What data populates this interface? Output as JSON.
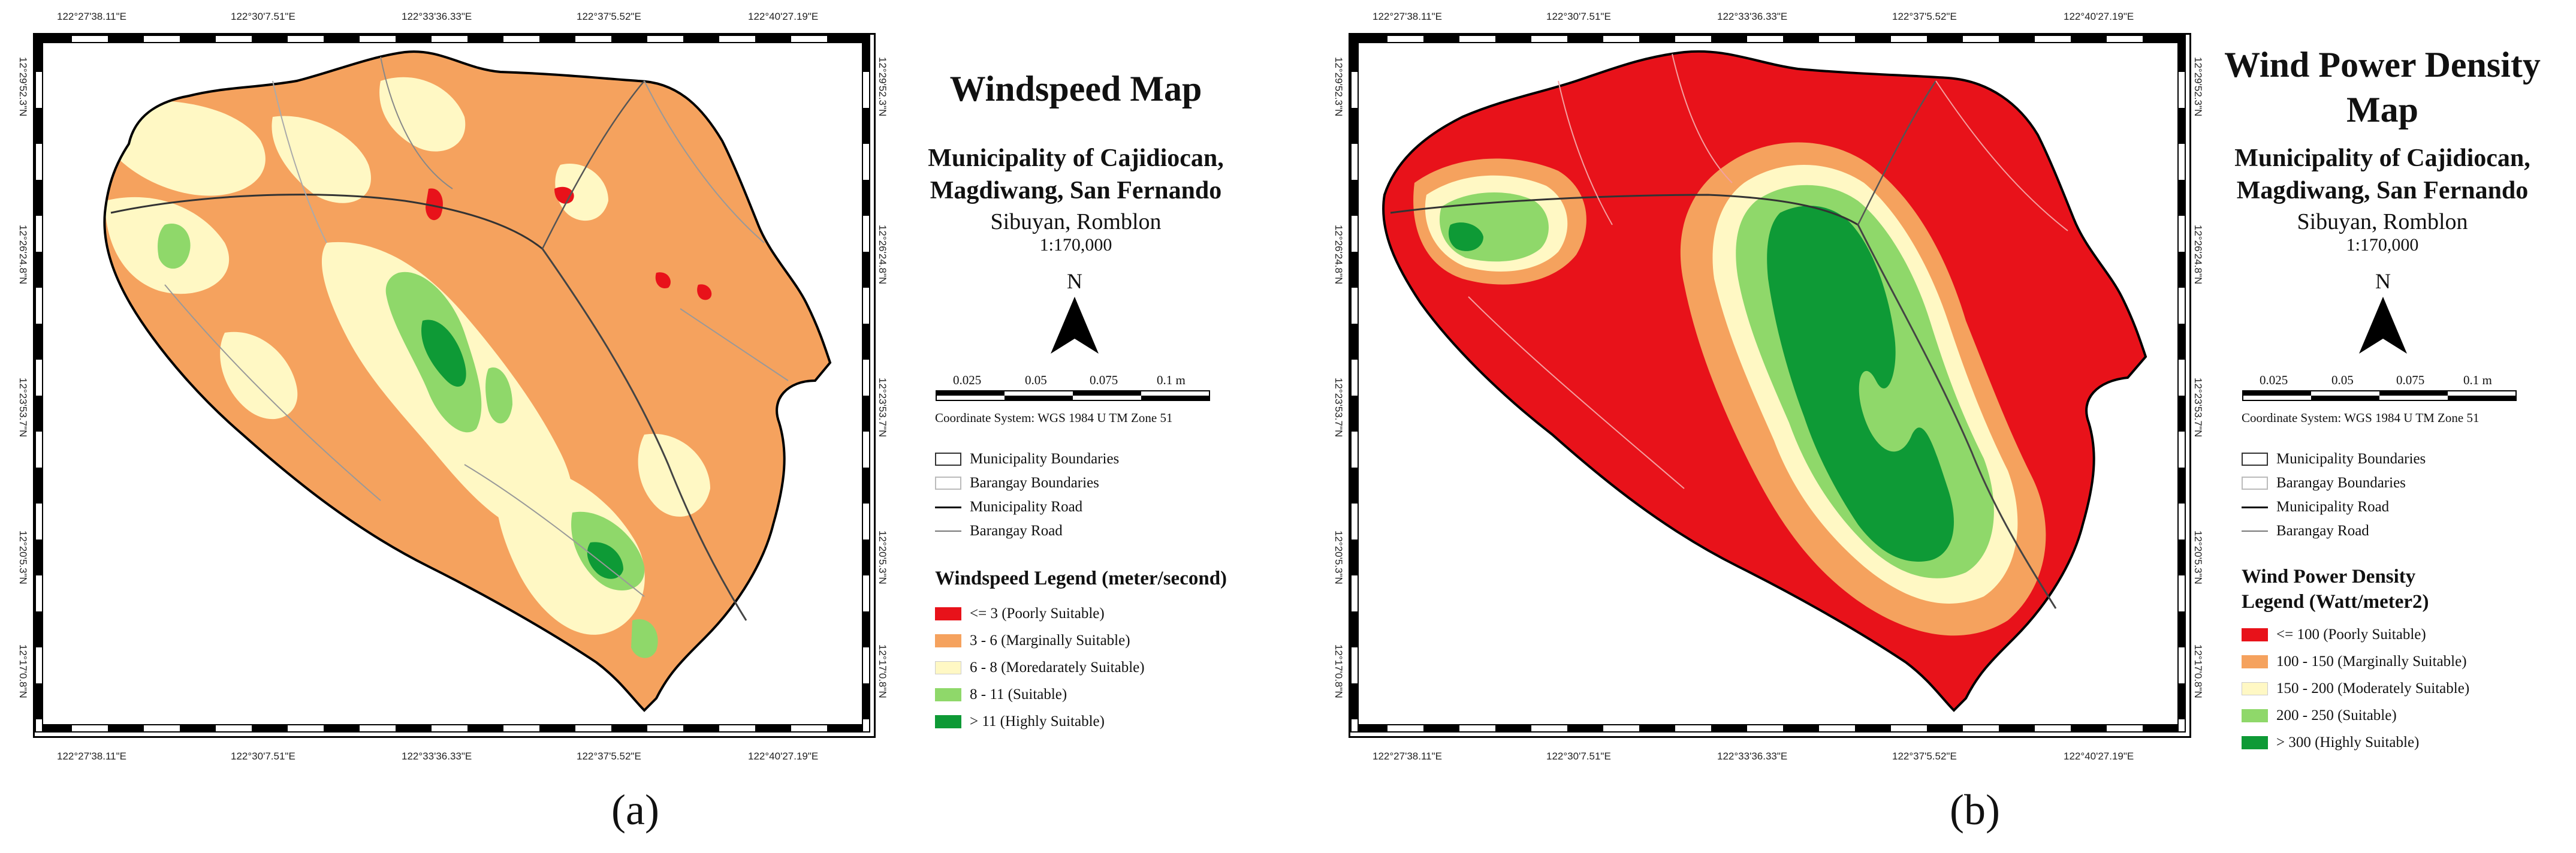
{
  "panels": [
    {
      "id": "a",
      "label": "(a)",
      "title": "Windspeed Map",
      "subtitle_line1": "Municipality of Cajidiocan,",
      "subtitle_line2": "Magdiwang, San Fernando",
      "place": "Sibuyan, Romblon",
      "scale": "1:170,000",
      "north": "N",
      "scalebar_ticks": [
        "0.025",
        "0.05",
        "0.075",
        "0.1 m"
      ],
      "coordinate_system": "Coordinate System: WGS 1984 U TM Zone 51",
      "boundary_legend": [
        "Municipality Boundaries",
        "Barangay Boundaries",
        "Municipality Road",
        "Barangay Road"
      ],
      "legend_title_line1": "Windspeed Legend (meter/second)",
      "legend_title_line2": "",
      "legend": [
        {
          "label": "<= 3 (Poorly Suitable)",
          "color": "#e8121a"
        },
        {
          "label": "3 - 6  (Marginally Suitable)",
          "color": "#f5a25e"
        },
        {
          "label": "6 - 8  (Moredarately Suitable)",
          "color": "#fff8c4"
        },
        {
          "label": "8 - 11  (Suitable)",
          "color": "#8fd86a"
        },
        {
          "label": "> 11  (Highly Suitable)",
          "color": "#0e9a36"
        }
      ],
      "lon_ticks": [
        "122°27'38.11\"E",
        "122°30'7.51\"E",
        "122°33'36.33\"E",
        "122°37'5.52\"E",
        "122°40'27.19\"E"
      ],
      "lat_ticks": [
        "12°29'52.3\"N",
        "12°26'24.8\"N",
        "12°23'53.7\"N",
        "12°20'5.3\"N",
        "12°17'0.8\"N"
      ]
    },
    {
      "id": "b",
      "label": "(b)",
      "title_line1": "Wind Power Density",
      "title_line2": "Map",
      "subtitle_line1": "Municipality of Cajidiocan,",
      "subtitle_line2": "Magdiwang, San Fernando",
      "place": "Sibuyan, Romblon",
      "scale": "1:170,000",
      "north": "N",
      "scalebar_ticks": [
        "0.025",
        "0.05",
        "0.075",
        "0.1 m"
      ],
      "coordinate_system": "Coordinate System: WGS 1984 U TM Zone 51",
      "boundary_legend": [
        "Municipality Boundaries",
        "Barangay Boundaries",
        "Municipality Road",
        "Barangay Road"
      ],
      "legend_title_line1": "Wind Power Density",
      "legend_title_line2": "Legend (Watt/meter2)",
      "legend": [
        {
          "label": "<= 100  (Poorly Suitable)",
          "color": "#e8121a"
        },
        {
          "label": "100 - 150 (Marginally Suitable)",
          "color": "#f5a25e"
        },
        {
          "label": "150 - 200 (Moderately Suitable)",
          "color": "#fff8c4"
        },
        {
          "label": "200 - 250 (Suitable)",
          "color": "#8fd86a"
        },
        {
          "label": "> 300 (Highly Suitable)",
          "color": "#0e9a36"
        }
      ],
      "lon_ticks": [
        "122°27'38.11\"E",
        "122°30'7.51\"E",
        "122°33'36.33\"E",
        "122°37'5.52\"E",
        "122°40'27.19\"E"
      ],
      "lat_ticks": [
        "12°29'52.3\"N",
        "12°26'24.8\"N",
        "12°23'53.7\"N",
        "12°20'5.3\"N",
        "12°17'0.8\"N"
      ]
    }
  ]
}
